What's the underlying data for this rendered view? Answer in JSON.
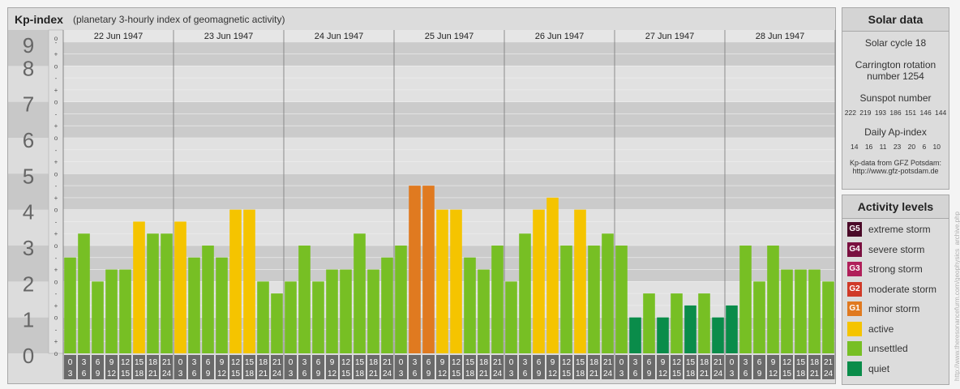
{
  "header": {
    "title": "Kp-index",
    "subtitle": "(planetary 3-hourly index of geomagnetic activity)"
  },
  "solar": {
    "heading": "Solar data",
    "cycle": "Solar cycle 18",
    "carrington_1": "Carrington rotation",
    "carrington_2": "number 1254",
    "sunspot_label": "Sunspot number",
    "sunspot_values": "222 219 193 186 151 146 144",
    "ap_label": "Daily Ap-index",
    "ap_values": "14 16 11 23 20 6 10",
    "source_1": "Kp-data from GFZ Potsdam:",
    "source_2": "http://www.gfz-potsdam.de"
  },
  "activity": {
    "heading": "Activity levels",
    "levels": [
      {
        "code": "G5",
        "label": "extreme storm",
        "color": "#4a0a28"
      },
      {
        "code": "G4",
        "label": "severe storm",
        "color": "#7a1040"
      },
      {
        "code": "G3",
        "label": "strong storm",
        "color": "#b0205a"
      },
      {
        "code": "G2",
        "label": "moderate storm",
        "color": "#d03a28"
      },
      {
        "code": "G1",
        "label": "minor storm",
        "color": "#e07a20"
      },
      {
        "code": "",
        "label": "active",
        "color": "#f5c400"
      },
      {
        "code": "",
        "label": "unsettled",
        "color": "#77bf24"
      },
      {
        "code": "",
        "label": "quiet",
        "color": "#0a8c4a"
      }
    ]
  },
  "watermark": "http://www.theresonancefurm.com/geophysics_archive.php",
  "chart_data": {
    "type": "bar",
    "ylim": [
      0,
      9
    ],
    "yticks": [
      "0",
      "1",
      "2",
      "3",
      "4",
      "5",
      "6",
      "7",
      "8",
      "9"
    ],
    "days": [
      "22 Jun 1947",
      "23 Jun 1947",
      "24 Jun 1947",
      "25 Jun 1947",
      "26 Jun 1947",
      "27 Jun 1947",
      "28 Jun 1947"
    ],
    "interval_top": [
      "0",
      "3",
      "6",
      "9",
      "12",
      "15",
      "18",
      "21"
    ],
    "interval_bottom": [
      "3",
      "6",
      "9",
      "12",
      "15",
      "18",
      "21",
      "24"
    ],
    "values": [
      2.667,
      3.333,
      2.0,
      2.333,
      2.333,
      3.667,
      3.333,
      3.333,
      3.667,
      2.667,
      3.0,
      2.667,
      4.0,
      4.0,
      2.0,
      1.667,
      2.0,
      3.0,
      2.0,
      2.333,
      2.333,
      3.333,
      2.333,
      2.667,
      3.0,
      4.667,
      4.667,
      4.0,
      4.0,
      2.667,
      2.333,
      3.0,
      2.0,
      3.333,
      4.0,
      4.333,
      3.0,
      4.0,
      3.0,
      3.333,
      3.0,
      1.0,
      1.667,
      1.0,
      1.667,
      1.333,
      1.667,
      1.0,
      1.333,
      3.0,
      2.0,
      3.0,
      2.333,
      2.333,
      2.333,
      2.0
    ],
    "colors": {
      "quiet": "#0a8c4a",
      "unsettled": "#77bf24",
      "active": "#f5c400",
      "g1": "#e07a20",
      "g2": "#d03a28"
    }
  }
}
